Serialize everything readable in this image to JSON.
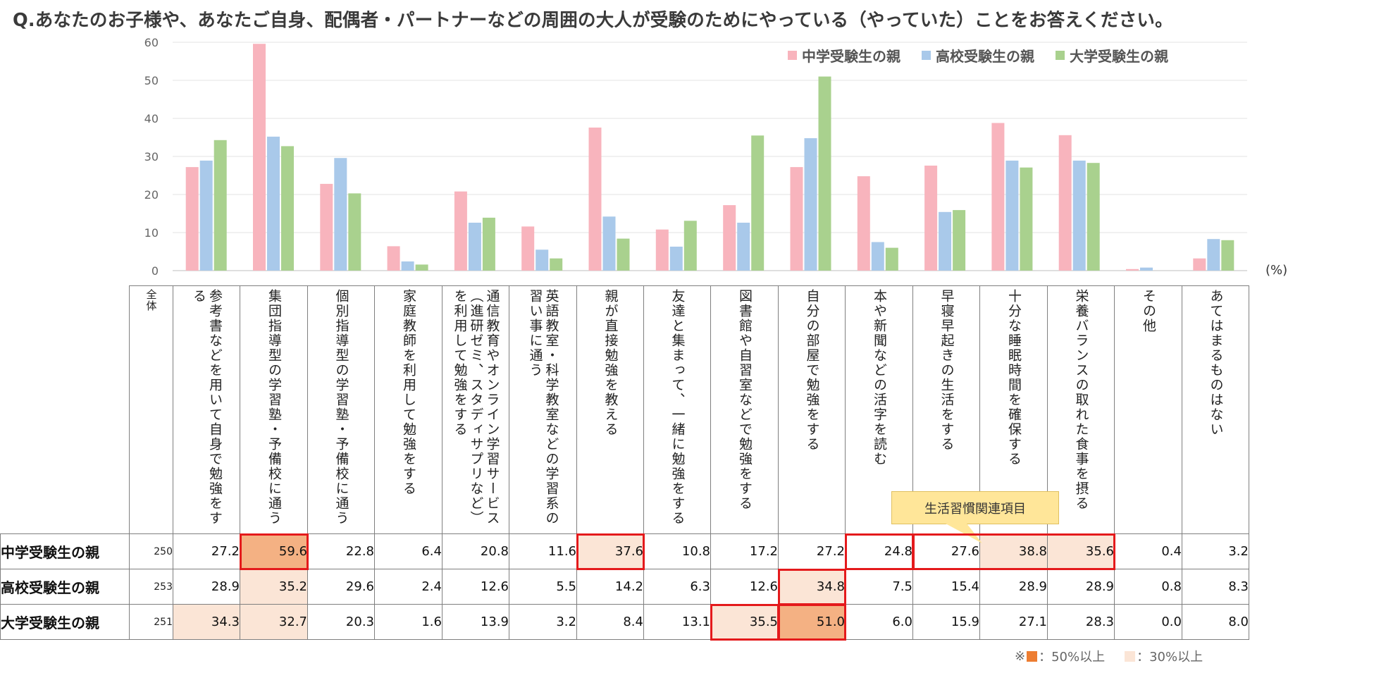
{
  "title": "Q.あなたのお子様や、あなたご自身、配偶者・パートナーなどの周囲の大人が受験のためにやっている（やっていた）ことをお答えください。",
  "unit": "(%)",
  "callout": "生活習慣関連項目",
  "footnote": {
    "prefix": "※",
    "dark_label": "：50%以上",
    "light_label": "：30%以上",
    "dark_color": "#ed7d31",
    "light_color": "#fbe5d6"
  },
  "colors": {
    "middle": "#f8b4bd",
    "high": "#a9c9ea",
    "univ": "#a9d18e",
    "heat50": "#f4b183",
    "heat30": "#fbe5d6",
    "highlight": "#e41a1c"
  },
  "table": {
    "total_header": "全体",
    "rows": [
      {
        "label": "中学受験生の親",
        "n": "250"
      },
      {
        "label": "高校受験生の親",
        "n": "253"
      },
      {
        "label": "大学受験生の親",
        "n": "251"
      }
    ]
  },
  "chart_data": {
    "type": "bar",
    "ylim": [
      0,
      60
    ],
    "yticks": [
      "0",
      "10",
      "20",
      "30",
      "40",
      "50",
      "60"
    ],
    "legend_position": "top-right",
    "grid": true,
    "categories": [
      "参考書などを用いて自身で勉強をする",
      "集団指導型の学習塾・予備校に通う",
      "個別指導型の学習塾・予備校に通う",
      "家庭教師を利用して勉強をする",
      "通信教育やオンライン学習サービス（進研ゼミ、スタディサプリなど）を利用して勉強をする",
      "英語教室・科学教室などの学習系の習い事に通う",
      "親が直接勉強を教える",
      "友達と集まって、一緒に勉強をする",
      "図書館や自習室などで勉強をする",
      "自分の部屋で勉強をする",
      "本や新聞などの活字を読む",
      "早寝早起きの生活をする",
      "十分な睡眠時間を確保する",
      "栄養バランスの取れた食事を摂る",
      "その他",
      "あてはまるものはない"
    ],
    "series": [
      {
        "name": "中学受験生の親",
        "values": [
          27.2,
          59.6,
          22.8,
          6.4,
          20.8,
          11.6,
          37.6,
          10.8,
          17.2,
          27.2,
          24.8,
          27.6,
          38.8,
          35.6,
          0.4,
          3.2
        ]
      },
      {
        "name": "高校受験生の親",
        "values": [
          28.9,
          35.2,
          29.6,
          2.4,
          12.6,
          5.5,
          14.2,
          6.3,
          12.6,
          34.8,
          7.5,
          15.4,
          28.9,
          28.9,
          0.8,
          8.3
        ]
      },
      {
        "name": "大学受験生の親",
        "values": [
          34.3,
          32.7,
          20.3,
          1.6,
          13.9,
          3.2,
          8.4,
          13.1,
          35.5,
          51.0,
          6.0,
          15.9,
          27.1,
          28.3,
          0.0,
          8.0
        ]
      }
    ]
  }
}
